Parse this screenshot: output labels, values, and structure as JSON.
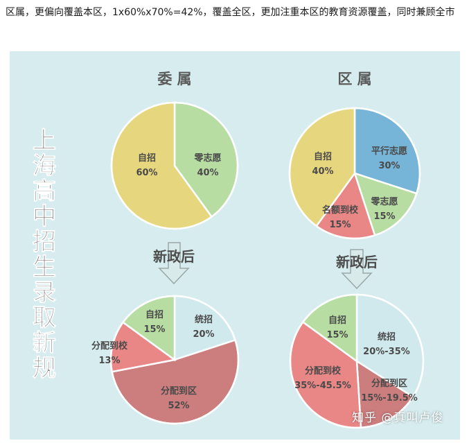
{
  "intro_text": "区属，更偏向覆盖本区，1x60%x70%=42%，覆盖全区，更加注重本区的教育资源覆盖，同时兼顾全市",
  "vertical_title": "上海高中招生录取新规",
  "arrow_label": "新政后",
  "watermark": "知乎 @真叫卢俊",
  "chart_data": [
    {
      "type": "pie",
      "title": "委 属",
      "slices": [
        {
          "label": "零志愿",
          "value_text": "40%",
          "value": 40,
          "color": "#b7dda2"
        },
        {
          "label": "自招",
          "value_text": "60%",
          "value": 60,
          "color": "#e6d77e"
        }
      ]
    },
    {
      "type": "pie",
      "title": "区 属",
      "slices": [
        {
          "label": "平行志愿",
          "value_text": "30%",
          "value": 30,
          "color": "#76b4d8"
        },
        {
          "label": "零志愿",
          "value_text": "15%",
          "value": 15,
          "color": "#b7dda2"
        },
        {
          "label": "名额到校",
          "value_text": "15%",
          "value": 15,
          "color": "#e98686"
        },
        {
          "label": "自招",
          "value_text": "40%",
          "value": 40,
          "color": "#e6d77e"
        }
      ]
    },
    {
      "type": "pie",
      "title": "",
      "slices": [
        {
          "label": "统招",
          "value_text": "20%",
          "value": 20,
          "color": "#cfe9ec"
        },
        {
          "label": "分配到区",
          "value_text": "52%",
          "value": 52,
          "color": "#cc7d7d"
        },
        {
          "label": "分配到校",
          "value_text": "13%",
          "value": 13,
          "color": "#e98686"
        },
        {
          "label": "自招",
          "value_text": "15%",
          "value": 15,
          "color": "#b7dda2"
        }
      ]
    },
    {
      "type": "pie",
      "title": "",
      "slices": [
        {
          "label": "统招",
          "value_text": "20%-35%",
          "value": 34,
          "color": "#cfe9ec"
        },
        {
          "label": "分配到区",
          "value_text": "15%-19.5%",
          "value": 15,
          "color": "#cc7d7d"
        },
        {
          "label": "分配到校",
          "value_text": "35%-45.5%",
          "value": 36,
          "color": "#e98686"
        },
        {
          "label": "自招",
          "value_text": "15%",
          "value": 15,
          "color": "#b7dda2"
        }
      ]
    }
  ]
}
